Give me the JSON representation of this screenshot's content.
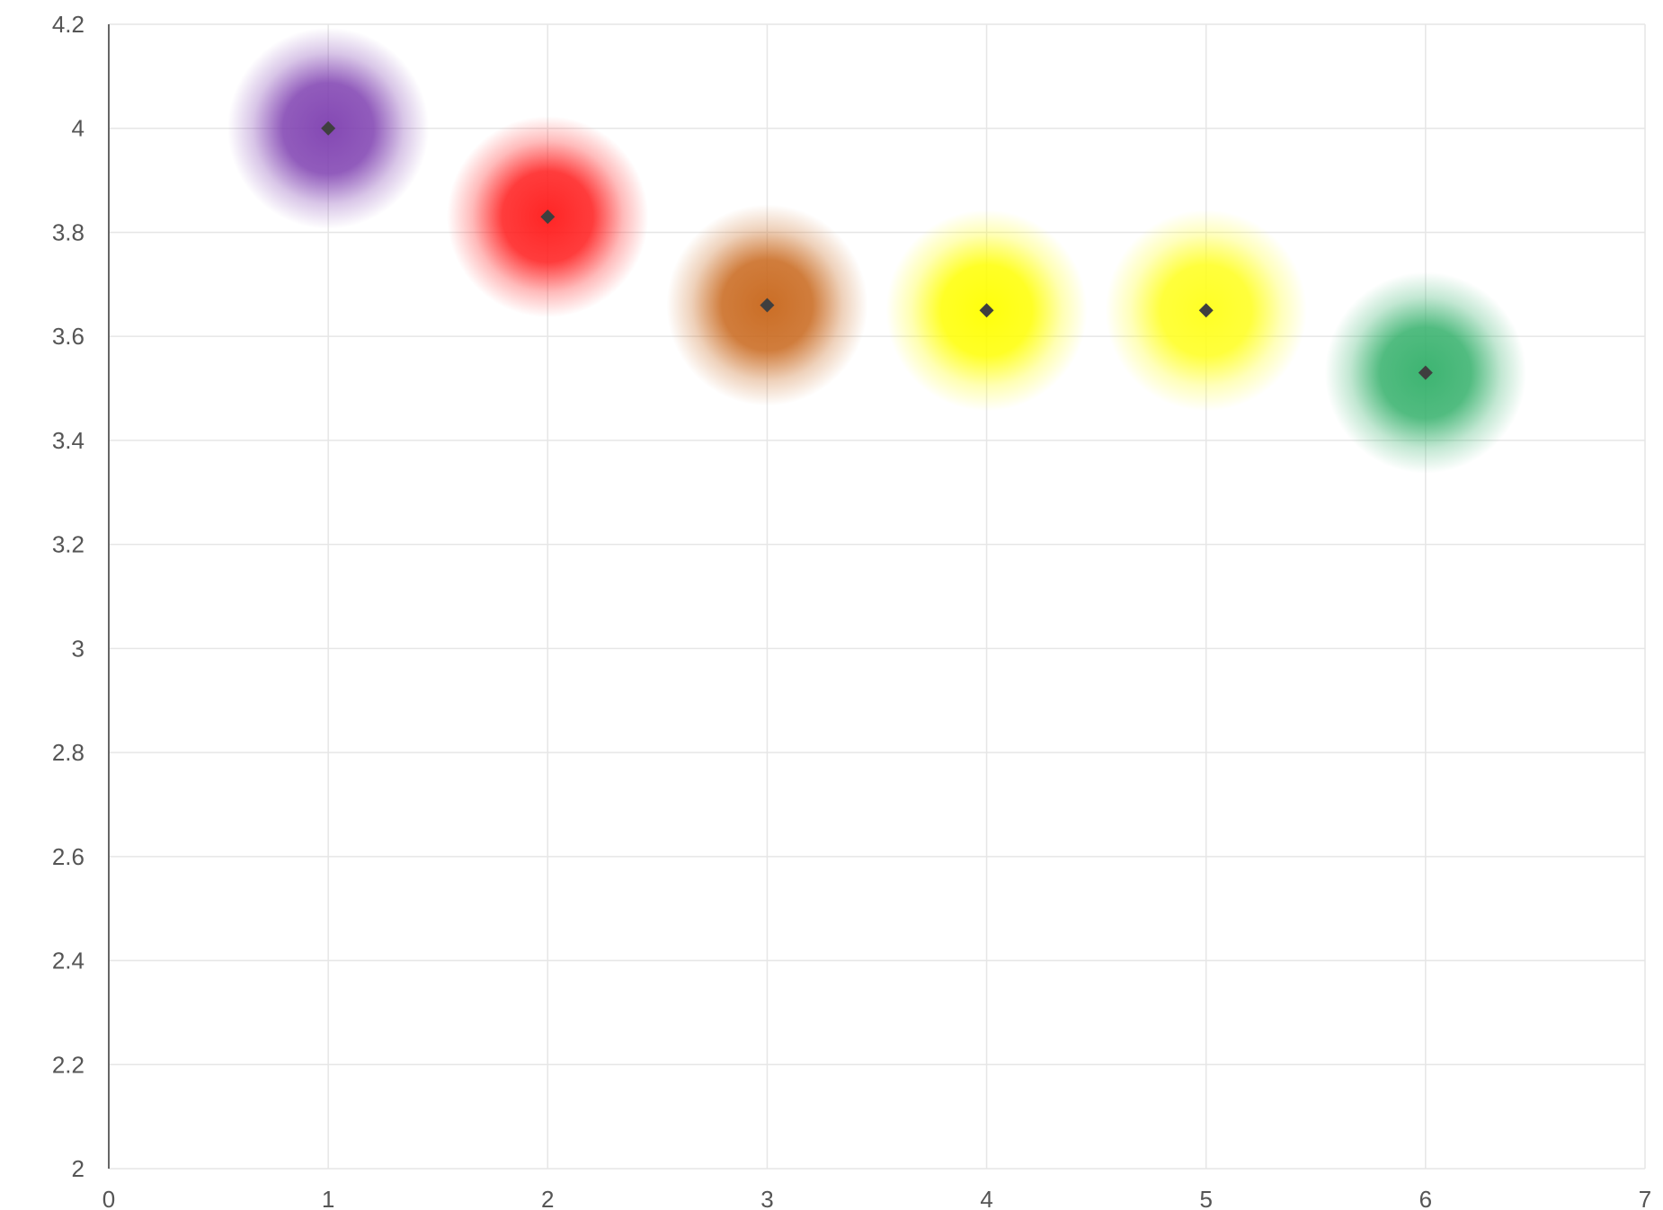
{
  "chart_data": {
    "type": "scatter",
    "title": "",
    "xlabel": "",
    "ylabel": "",
    "xlim": [
      0,
      7
    ],
    "ylim": [
      2,
      4.2
    ],
    "x_ticks": [
      "0",
      "1",
      "2",
      "3",
      "4",
      "5",
      "6",
      "7"
    ],
    "y_ticks": [
      "2",
      "2.2",
      "2.4",
      "2.6",
      "2.8",
      "3",
      "3.2",
      "3.4",
      "3.6",
      "3.8",
      "4",
      "4.2"
    ],
    "grid": true,
    "legend": "none",
    "marker": "diamond",
    "marker_color": "#3f3f3f",
    "points": [
      {
        "x": 1,
        "y": 4.0,
        "color": "#7e3fb0"
      },
      {
        "x": 2,
        "y": 3.83,
        "color": "#ff1a1a"
      },
      {
        "x": 3,
        "y": 3.66,
        "color": "#c8661a"
      },
      {
        "x": 4,
        "y": 3.65,
        "color": "#ffff00"
      },
      {
        "x": 5,
        "y": 3.65,
        "color": "#ffff1a"
      },
      {
        "x": 6,
        "y": 3.53,
        "color": "#33b06a"
      }
    ]
  }
}
